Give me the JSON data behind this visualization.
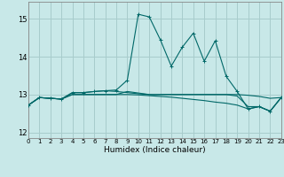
{
  "xlabel": "Humidex (Indice chaleur)",
  "xlim": [
    0,
    23
  ],
  "ylim": [
    11.85,
    15.45
  ],
  "yticks": [
    12,
    13,
    14,
    15
  ],
  "xticks": [
    0,
    1,
    2,
    3,
    4,
    5,
    6,
    7,
    8,
    9,
    10,
    11,
    12,
    13,
    14,
    15,
    16,
    17,
    18,
    19,
    20,
    21,
    22,
    23
  ],
  "bg_color": "#c8e8e8",
  "grid_color": "#a8cccc",
  "line_color": "#006868",
  "lines": [
    [
      12.72,
      12.92,
      12.9,
      12.88,
      13.05,
      13.05,
      13.08,
      13.1,
      13.12,
      13.38,
      15.12,
      15.05,
      14.45,
      13.75,
      14.25,
      14.62,
      13.88,
      14.42,
      13.48,
      13.08,
      12.62,
      12.68,
      12.56,
      12.92
    ],
    [
      12.72,
      12.92,
      12.9,
      12.88,
      13.05,
      13.05,
      13.08,
      13.1,
      13.08,
      13.05,
      13.02,
      13.0,
      13.0,
      13.0,
      13.0,
      13.0,
      13.0,
      13.0,
      13.0,
      13.0,
      12.98,
      12.95,
      12.9,
      12.92
    ],
    [
      12.72,
      12.92,
      12.9,
      12.88,
      13.0,
      13.0,
      13.0,
      13.0,
      13.0,
      13.08,
      13.04,
      13.0,
      13.0,
      13.0,
      13.0,
      13.0,
      13.0,
      13.0,
      13.0,
      12.96,
      12.68,
      12.68,
      12.56,
      12.92
    ],
    [
      12.72,
      12.92,
      12.9,
      12.88,
      13.0,
      13.0,
      13.0,
      13.0,
      13.0,
      13.0,
      12.99,
      12.97,
      12.95,
      12.93,
      12.9,
      12.87,
      12.84,
      12.8,
      12.77,
      12.72,
      12.62,
      12.68,
      12.56,
      12.92
    ]
  ]
}
